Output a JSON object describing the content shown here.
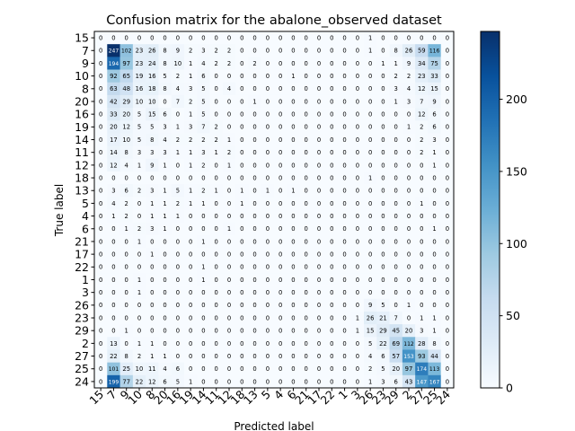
{
  "chart_data": {
    "type": "heatmap",
    "title": "Confusion matrix for the abalone_observed dataset",
    "xlabel": "Predicted label",
    "ylabel": "True label",
    "labels": [
      "15",
      "7",
      "9",
      "10",
      "8",
      "20",
      "16",
      "19",
      "14",
      "11",
      "12",
      "18",
      "13",
      "5",
      "4",
      "6",
      "21",
      "17",
      "22",
      "1",
      "3",
      "26",
      "23",
      "29",
      "2",
      "27",
      "25",
      "24"
    ],
    "matrix": [
      [
        0,
        0,
        0,
        0,
        0,
        0,
        0,
        0,
        0,
        0,
        0,
        0,
        0,
        0,
        0,
        0,
        0,
        0,
        0,
        0,
        0,
        1,
        0,
        0,
        0,
        0,
        0,
        0
      ],
      [
        0,
        247,
        102,
        23,
        26,
        8,
        9,
        2,
        3,
        2,
        2,
        0,
        0,
        0,
        0,
        0,
        0,
        0,
        0,
        0,
        0,
        1,
        0,
        8,
        26,
        59,
        116,
        0
      ],
      [
        0,
        194,
        97,
        23,
        24,
        8,
        10,
        1,
        4,
        2,
        2,
        0,
        2,
        0,
        0,
        0,
        0,
        0,
        0,
        0,
        0,
        0,
        1,
        1,
        9,
        34,
        75,
        0
      ],
      [
        0,
        92,
        65,
        19,
        16,
        5,
        2,
        1,
        6,
        0,
        0,
        0,
        0,
        0,
        0,
        1,
        0,
        0,
        0,
        0,
        0,
        0,
        0,
        2,
        2,
        23,
        33,
        0
      ],
      [
        0,
        63,
        48,
        16,
        18,
        8,
        4,
        3,
        5,
        0,
        4,
        0,
        0,
        0,
        0,
        0,
        0,
        0,
        0,
        0,
        0,
        0,
        0,
        3,
        4,
        12,
        15,
        0
      ],
      [
        0,
        42,
        29,
        10,
        10,
        0,
        7,
        2,
        5,
        0,
        0,
        0,
        1,
        0,
        0,
        0,
        0,
        0,
        0,
        0,
        0,
        0,
        0,
        1,
        3,
        7,
        9,
        0
      ],
      [
        0,
        33,
        20,
        5,
        15,
        6,
        0,
        1,
        5,
        0,
        0,
        0,
        0,
        0,
        0,
        0,
        0,
        0,
        0,
        0,
        0,
        0,
        0,
        0,
        0,
        12,
        6,
        0
      ],
      [
        0,
        20,
        12,
        5,
        5,
        3,
        1,
        3,
        7,
        2,
        0,
        0,
        0,
        0,
        0,
        0,
        0,
        0,
        0,
        0,
        0,
        0,
        0,
        0,
        1,
        2,
        6,
        0
      ],
      [
        0,
        17,
        10,
        5,
        8,
        4,
        2,
        2,
        2,
        2,
        1,
        0,
        0,
        0,
        0,
        0,
        0,
        0,
        0,
        0,
        0,
        0,
        0,
        0,
        0,
        2,
        3,
        0
      ],
      [
        0,
        14,
        8,
        3,
        3,
        3,
        1,
        1,
        3,
        1,
        2,
        0,
        0,
        0,
        0,
        0,
        0,
        0,
        0,
        0,
        0,
        0,
        0,
        0,
        0,
        2,
        1,
        0
      ],
      [
        0,
        12,
        4,
        1,
        9,
        1,
        0,
        1,
        2,
        0,
        1,
        0,
        0,
        0,
        0,
        0,
        0,
        0,
        0,
        0,
        0,
        0,
        0,
        0,
        0,
        0,
        1,
        0
      ],
      [
        0,
        0,
        0,
        0,
        0,
        0,
        0,
        0,
        0,
        0,
        0,
        0,
        0,
        0,
        0,
        0,
        0,
        0,
        0,
        0,
        0,
        1,
        0,
        0,
        0,
        0,
        0,
        0
      ],
      [
        0,
        3,
        6,
        2,
        3,
        1,
        5,
        1,
        2,
        1,
        0,
        1,
        0,
        1,
        0,
        1,
        0,
        0,
        0,
        0,
        0,
        0,
        0,
        0,
        0,
        0,
        0,
        0
      ],
      [
        0,
        4,
        2,
        0,
        1,
        1,
        2,
        1,
        1,
        0,
        0,
        1,
        0,
        0,
        0,
        0,
        0,
        0,
        0,
        0,
        0,
        0,
        0,
        0,
        0,
        1,
        0,
        0
      ],
      [
        0,
        1,
        2,
        0,
        1,
        1,
        1,
        0,
        0,
        0,
        0,
        0,
        0,
        0,
        0,
        0,
        0,
        0,
        0,
        0,
        0,
        0,
        0,
        0,
        0,
        0,
        0,
        0
      ],
      [
        0,
        0,
        1,
        2,
        3,
        1,
        0,
        0,
        0,
        0,
        1,
        0,
        0,
        0,
        0,
        0,
        0,
        0,
        0,
        0,
        0,
        0,
        0,
        0,
        0,
        0,
        1,
        0
      ],
      [
        0,
        0,
        0,
        1,
        0,
        0,
        0,
        0,
        1,
        0,
        0,
        0,
        0,
        0,
        0,
        0,
        0,
        0,
        0,
        0,
        0,
        0,
        0,
        0,
        0,
        0,
        0,
        0
      ],
      [
        0,
        0,
        0,
        0,
        1,
        0,
        0,
        0,
        0,
        0,
        0,
        0,
        0,
        0,
        0,
        0,
        0,
        0,
        0,
        0,
        0,
        0,
        0,
        0,
        0,
        0,
        0,
        0
      ],
      [
        0,
        0,
        0,
        0,
        0,
        0,
        0,
        0,
        1,
        0,
        0,
        0,
        0,
        0,
        0,
        0,
        0,
        0,
        0,
        0,
        0,
        0,
        0,
        0,
        0,
        0,
        0,
        0
      ],
      [
        0,
        0,
        0,
        1,
        0,
        0,
        0,
        0,
        1,
        0,
        0,
        0,
        0,
        0,
        0,
        0,
        0,
        0,
        0,
        0,
        0,
        0,
        0,
        0,
        0,
        0,
        0,
        0
      ],
      [
        0,
        0,
        0,
        1,
        0,
        0,
        0,
        0,
        0,
        0,
        0,
        0,
        0,
        0,
        0,
        0,
        0,
        0,
        0,
        0,
        0,
        0,
        0,
        0,
        0,
        0,
        0,
        0
      ],
      [
        0,
        0,
        0,
        0,
        0,
        0,
        0,
        0,
        0,
        0,
        0,
        0,
        0,
        0,
        0,
        0,
        0,
        0,
        0,
        0,
        0,
        9,
        5,
        0,
        1,
        0,
        0,
        0
      ],
      [
        0,
        0,
        0,
        0,
        0,
        0,
        0,
        0,
        0,
        0,
        0,
        0,
        0,
        0,
        0,
        0,
        0,
        0,
        0,
        0,
        1,
        26,
        21,
        7,
        0,
        1,
        1,
        0
      ],
      [
        0,
        0,
        1,
        0,
        0,
        0,
        0,
        0,
        0,
        0,
        0,
        0,
        0,
        0,
        0,
        0,
        0,
        0,
        0,
        0,
        1,
        15,
        29,
        45,
        20,
        3,
        1,
        0
      ],
      [
        0,
        13,
        0,
        1,
        1,
        0,
        0,
        0,
        0,
        0,
        0,
        0,
        0,
        0,
        0,
        0,
        0,
        0,
        0,
        0,
        0,
        5,
        22,
        69,
        112,
        28,
        8,
        0
      ],
      [
        0,
        22,
        8,
        2,
        1,
        1,
        0,
        0,
        0,
        0,
        0,
        0,
        0,
        0,
        0,
        0,
        0,
        0,
        0,
        0,
        0,
        4,
        6,
        57,
        153,
        93,
        44,
        0
      ],
      [
        0,
        101,
        25,
        10,
        11,
        4,
        6,
        0,
        0,
        0,
        0,
        0,
        0,
        0,
        0,
        0,
        0,
        0,
        0,
        0,
        0,
        2,
        5,
        20,
        97,
        174,
        113,
        0
      ],
      [
        0,
        199,
        77,
        22,
        12,
        6,
        5,
        1,
        0,
        0,
        0,
        0,
        0,
        0,
        0,
        0,
        0,
        0,
        0,
        0,
        0,
        1,
        3,
        6,
        43,
        147,
        167,
        0
      ]
    ],
    "colorbar_ticks": [
      0,
      50,
      100,
      150,
      200
    ],
    "value_range": [
      0,
      247
    ],
    "colormap": "Blues",
    "color_low": "#f7fbff",
    "color_high": "#08306b",
    "grid": false,
    "text_dark": "#000000",
    "text_light": "#ffffff"
  }
}
